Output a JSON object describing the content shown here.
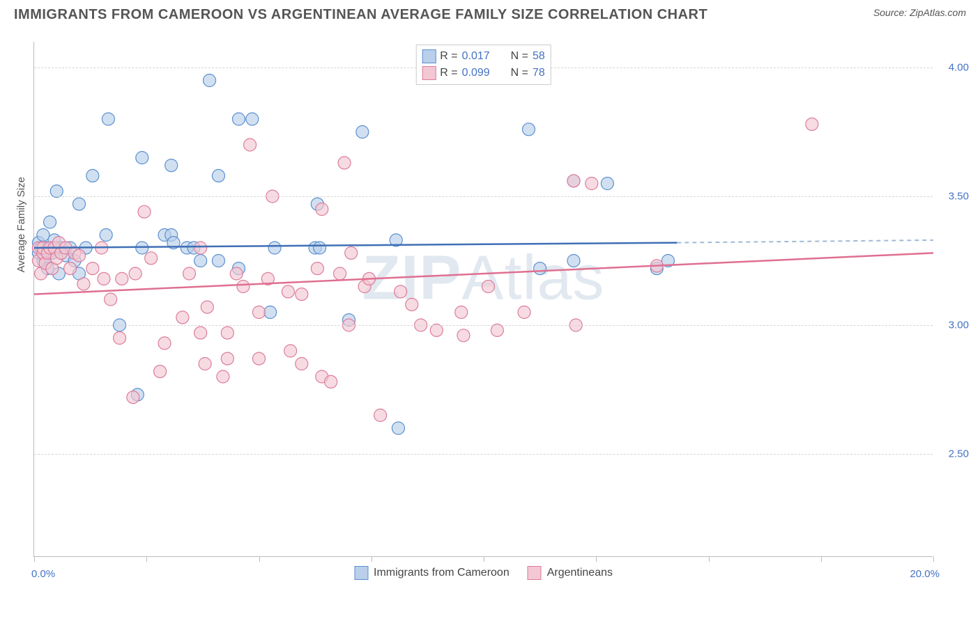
{
  "title": "IMMIGRANTS FROM CAMEROON VS ARGENTINEAN AVERAGE FAMILY SIZE CORRELATION CHART",
  "source": "Source: ZipAtlas.com",
  "watermark": "ZIPAtlas",
  "chart": {
    "type": "scatter",
    "ylabel": "Average Family Size",
    "xlim": [
      0,
      20
    ],
    "ylim": [
      2.1,
      4.1
    ],
    "ytick_values": [
      2.5,
      3.0,
      3.5,
      4.0
    ],
    "ytick_labels": [
      "2.50",
      "3.00",
      "3.50",
      "4.00"
    ],
    "xtick_positions": [
      0,
      2.5,
      5.0,
      7.5,
      10.0,
      12.5,
      15.0,
      17.5,
      20.0
    ],
    "x_range_min_label": "0.0%",
    "x_range_max_label": "20.0%",
    "background_color": "#ffffff",
    "grid_color": "#d5d5d5",
    "series": [
      {
        "name": "Immigrants from Cameroon",
        "marker_fill": "#b9cfea",
        "marker_stroke": "#5b8fd0",
        "line_color": "#3f6fb5",
        "dashed_color": "#9fb9d6",
        "marker_radius": 9,
        "R": "0.017",
        "N": "58",
        "trend": {
          "x1": 0,
          "y1": 3.3,
          "x2": 14.3,
          "y2": 3.32
        },
        "trend_dashed": {
          "x1": 14.3,
          "y1": 3.32,
          "x2": 20,
          "y2": 3.33
        },
        "points": [
          [
            0.1,
            3.28
          ],
          [
            0.1,
            3.32
          ],
          [
            0.15,
            3.3
          ],
          [
            0.2,
            3.25
          ],
          [
            0.2,
            3.35
          ],
          [
            0.25,
            3.26
          ],
          [
            0.3,
            3.3
          ],
          [
            0.3,
            3.22
          ],
          [
            0.35,
            3.4
          ],
          [
            0.4,
            3.28
          ],
          [
            0.45,
            3.33
          ],
          [
            0.5,
            3.52
          ],
          [
            0.5,
            3.3
          ],
          [
            0.55,
            3.2
          ],
          [
            0.6,
            3.3
          ],
          [
            0.7,
            3.27
          ],
          [
            0.8,
            3.3
          ],
          [
            0.9,
            3.25
          ],
          [
            1.0,
            3.2
          ],
          [
            1.0,
            3.47
          ],
          [
            1.15,
            3.3
          ],
          [
            1.3,
            3.58
          ],
          [
            1.65,
            3.8
          ],
          [
            1.6,
            3.35
          ],
          [
            1.9,
            3.0
          ],
          [
            2.3,
            2.73
          ],
          [
            2.4,
            3.65
          ],
          [
            2.4,
            3.3
          ],
          [
            2.9,
            3.35
          ],
          [
            3.05,
            3.62
          ],
          [
            3.05,
            3.35
          ],
          [
            3.1,
            3.32
          ],
          [
            3.4,
            3.3
          ],
          [
            3.55,
            3.3
          ],
          [
            3.7,
            3.25
          ],
          [
            3.9,
            3.95
          ],
          [
            4.1,
            3.25
          ],
          [
            4.1,
            3.58
          ],
          [
            4.55,
            3.8
          ],
          [
            4.55,
            3.22
          ],
          [
            4.85,
            3.8
          ],
          [
            5.25,
            3.05
          ],
          [
            5.35,
            3.3
          ],
          [
            6.25,
            3.3
          ],
          [
            6.3,
            3.47
          ],
          [
            6.35,
            3.3
          ],
          [
            7.0,
            3.02
          ],
          [
            7.3,
            3.75
          ],
          [
            8.05,
            3.33
          ],
          [
            8.1,
            2.6
          ],
          [
            11.0,
            3.76
          ],
          [
            11.25,
            3.22
          ],
          [
            12.0,
            3.56
          ],
          [
            12.0,
            3.25
          ],
          [
            12.75,
            3.55
          ],
          [
            13.85,
            3.22
          ],
          [
            14.1,
            3.25
          ]
        ]
      },
      {
        "name": "Argentineans",
        "marker_fill": "#f3c7d3",
        "marker_stroke": "#dc7c9b",
        "line_color": "#df6f91",
        "marker_radius": 9,
        "R": "0.099",
        "N": "78",
        "trend": {
          "x1": 0,
          "y1": 3.12,
          "x2": 20,
          "y2": 3.28
        },
        "points": [
          [
            0.1,
            3.25
          ],
          [
            0.1,
            3.3
          ],
          [
            0.15,
            3.2
          ],
          [
            0.2,
            3.28
          ],
          [
            0.2,
            3.3
          ],
          [
            0.25,
            3.24
          ],
          [
            0.3,
            3.28
          ],
          [
            0.35,
            3.3
          ],
          [
            0.4,
            3.22
          ],
          [
            0.45,
            3.3
          ],
          [
            0.5,
            3.26
          ],
          [
            0.55,
            3.32
          ],
          [
            0.6,
            3.28
          ],
          [
            0.7,
            3.3
          ],
          [
            0.8,
            3.22
          ],
          [
            0.9,
            3.28
          ],
          [
            1.0,
            3.27
          ],
          [
            1.1,
            3.16
          ],
          [
            1.3,
            3.22
          ],
          [
            1.5,
            3.3
          ],
          [
            1.55,
            3.18
          ],
          [
            1.7,
            3.1
          ],
          [
            1.9,
            2.95
          ],
          [
            1.95,
            3.18
          ],
          [
            2.2,
            2.72
          ],
          [
            2.25,
            3.2
          ],
          [
            2.45,
            3.44
          ],
          [
            2.6,
            3.26
          ],
          [
            2.8,
            2.82
          ],
          [
            2.9,
            2.93
          ],
          [
            3.3,
            3.03
          ],
          [
            3.45,
            3.2
          ],
          [
            3.7,
            2.97
          ],
          [
            3.7,
            3.3
          ],
          [
            3.8,
            2.85
          ],
          [
            3.85,
            3.07
          ],
          [
            4.2,
            2.8
          ],
          [
            4.3,
            2.97
          ],
          [
            4.3,
            2.87
          ],
          [
            4.5,
            3.2
          ],
          [
            4.65,
            3.15
          ],
          [
            4.8,
            3.7
          ],
          [
            5.0,
            3.05
          ],
          [
            5.0,
            2.87
          ],
          [
            5.2,
            3.18
          ],
          [
            5.3,
            3.5
          ],
          [
            5.65,
            3.13
          ],
          [
            5.7,
            2.9
          ],
          [
            5.95,
            3.12
          ],
          [
            5.95,
            2.85
          ],
          [
            6.3,
            3.22
          ],
          [
            6.4,
            2.8
          ],
          [
            6.4,
            3.45
          ],
          [
            6.6,
            2.78
          ],
          [
            6.8,
            3.2
          ],
          [
            6.9,
            3.63
          ],
          [
            7.0,
            3.0
          ],
          [
            7.05,
            3.28
          ],
          [
            7.35,
            3.15
          ],
          [
            7.45,
            3.18
          ],
          [
            7.7,
            2.65
          ],
          [
            8.15,
            3.13
          ],
          [
            8.4,
            3.08
          ],
          [
            8.6,
            3.0
          ],
          [
            8.95,
            2.98
          ],
          [
            9.5,
            3.05
          ],
          [
            9.55,
            2.96
          ],
          [
            10.1,
            3.15
          ],
          [
            10.3,
            2.98
          ],
          [
            10.9,
            3.05
          ],
          [
            12.0,
            3.56
          ],
          [
            12.05,
            3.0
          ],
          [
            12.4,
            3.55
          ],
          [
            13.85,
            3.23
          ],
          [
            17.3,
            3.78
          ]
        ]
      }
    ]
  }
}
